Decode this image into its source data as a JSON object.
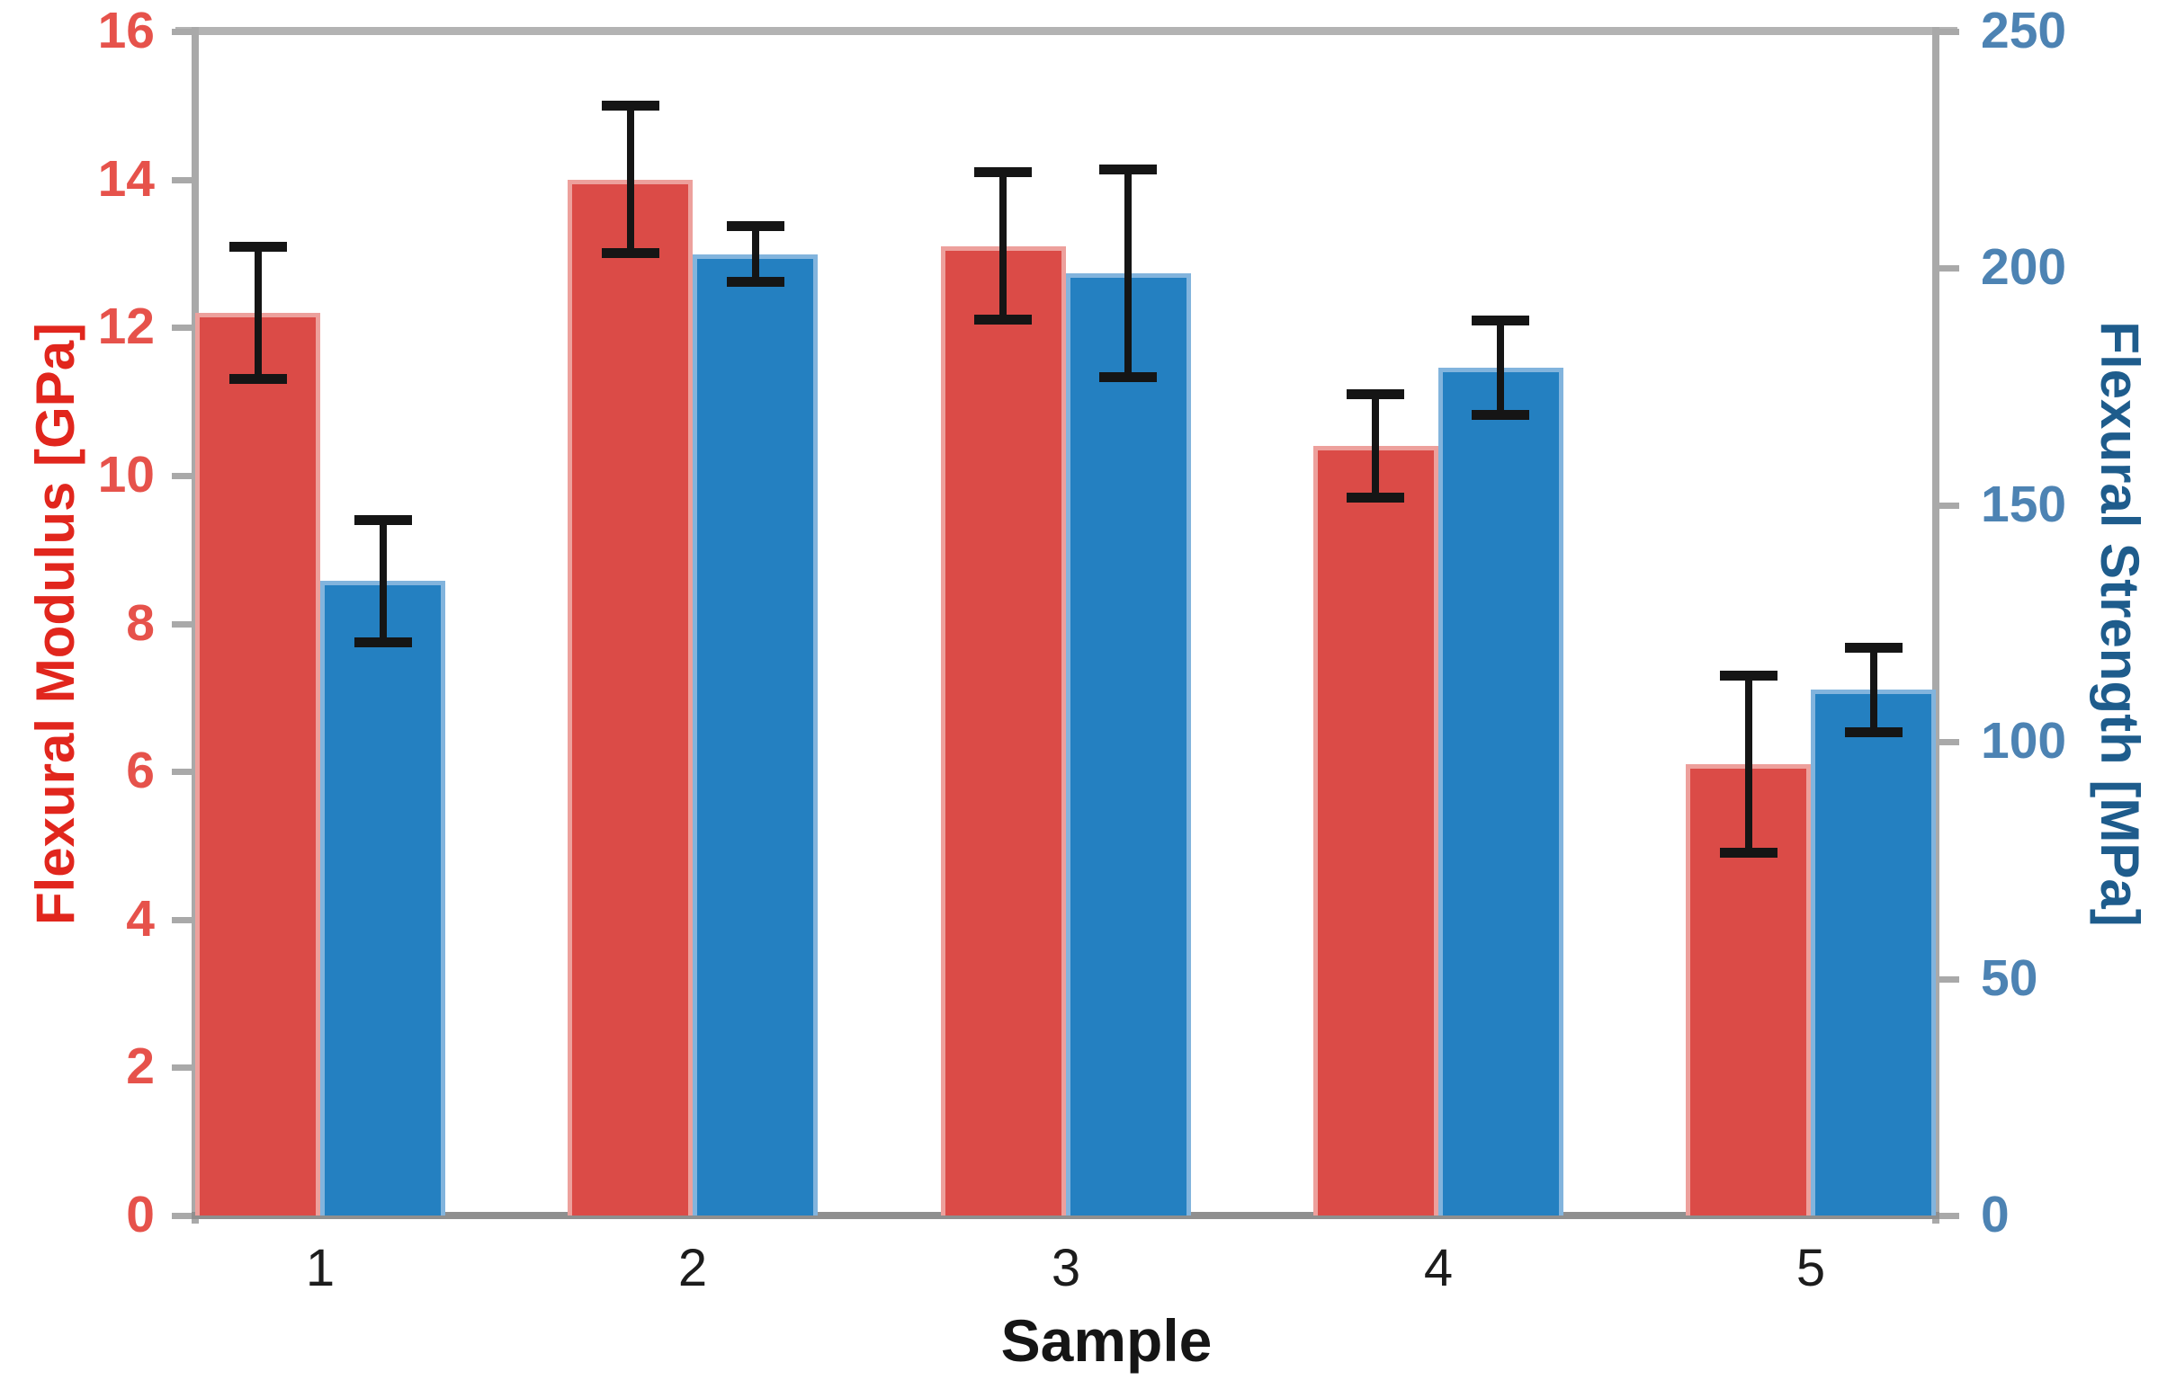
{
  "chart_data": {
    "type": "bar",
    "subtype": "grouped-dual-axis",
    "title": "",
    "xlabel": "Sample",
    "categories": [
      "1",
      "2",
      "3",
      "4",
      "5"
    ],
    "left_axis": {
      "label": "Flexural Modulus [GPa]",
      "min": 0,
      "max": 16,
      "step": 2,
      "tick_labels": [
        "0",
        "2",
        "4",
        "6",
        "8",
        "10",
        "12",
        "14",
        "16"
      ],
      "tick_color": "#E6524B",
      "title_color": "#E1261D"
    },
    "right_axis": {
      "label": "Flexural Strength [MPa]",
      "min": 0,
      "max": 250,
      "step": 50,
      "tick_labels": [
        "0",
        "50",
        "100",
        "150",
        "200",
        "250"
      ],
      "tick_color": "#4D83B3",
      "title_color": "#1E5C8C"
    },
    "series": [
      {
        "name": "Flexural Modulus",
        "axis": "left",
        "unit": "GPa",
        "fill": "#DB4B47",
        "edge": "#EDA09C",
        "values": [
          12.2,
          14.0,
          13.1,
          10.4,
          6.1
        ],
        "errors": [
          0.9,
          1.0,
          1.0,
          0.7,
          1.2
        ]
      },
      {
        "name": "Flexural Strength",
        "axis": "right",
        "unit": "MPa",
        "fill": "#2480C1",
        "edge": "#82B4DD",
        "values": [
          134,
          203,
          199,
          179,
          111
        ],
        "errors": [
          13,
          6,
          22,
          10,
          9
        ]
      }
    ],
    "error_bar_color": "#151515",
    "axis_line_color": "#A9A9A9",
    "top_border_color": "#B3B3B3",
    "baseline_color": "#8F8F8F",
    "grid": false,
    "legend": false
  }
}
